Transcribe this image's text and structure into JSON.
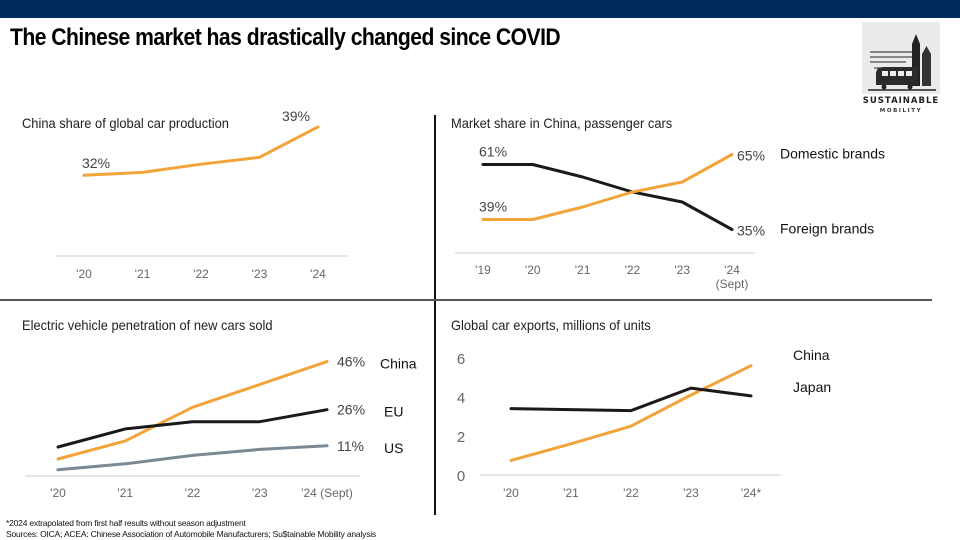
{
  "header": {
    "title": "The Chinese market has drastically changed since COVID",
    "bar_color": "#002a5c"
  },
  "logo": {
    "icon": "tram-and-towers-icon",
    "line1": "SUSTAINABLE",
    "line2": "MOBILITY"
  },
  "colors": {
    "china": "#f2a33a",
    "dark": "#1a1a1a",
    "us": "#7a8a94",
    "axis": "#cccccc"
  },
  "chart_data": [
    {
      "id": "production",
      "type": "line",
      "title": "China share of global car production",
      "categories": [
        "'20",
        "'21",
        "'22",
        "'23",
        "'24"
      ],
      "series": [
        {
          "name": "China",
          "color": "#f2a33a",
          "values": [
            32,
            32.4,
            33.6,
            34.6,
            39
          ],
          "labels": [
            {
              "index": 0,
              "text": "32%"
            },
            {
              "index": 4,
              "text": "39%"
            }
          ]
        }
      ],
      "ylim": [
        20,
        40
      ],
      "grid": false,
      "legend": "none"
    },
    {
      "id": "market_share",
      "type": "line",
      "title": "Market share in China, passenger cars",
      "categories": [
        "'19",
        "'20",
        "'21",
        "'22",
        "'23",
        "'24"
      ],
      "category_sublabels": [
        "",
        "",
        "",
        "",
        "",
        "(Sept)"
      ],
      "series": [
        {
          "name": "Foreign brands",
          "color": "#1a1a1a",
          "values": [
            61,
            61,
            56,
            50,
            46,
            35
          ],
          "labels": [
            {
              "index": 0,
              "text": "61%"
            },
            {
              "index": 5,
              "text": "35%"
            }
          ]
        },
        {
          "name": "Domestic brands",
          "color": "#f2a33a",
          "values": [
            39,
            39,
            44,
            50,
            54,
            65
          ],
          "labels": [
            {
              "index": 0,
              "text": "39%"
            },
            {
              "index": 5,
              "text": "65%"
            }
          ]
        }
      ],
      "ylim": [
        22,
        72
      ],
      "grid": false,
      "legend": "right"
    },
    {
      "id": "ev_penetration",
      "type": "line",
      "title": "Electric vehicle penetration of new cars sold",
      "categories": [
        "'20",
        "'21",
        "'22",
        "'23",
        "'24 (Sept)"
      ],
      "series": [
        {
          "name": "China",
          "color": "#f2a33a",
          "values": [
            5.5,
            13,
            27,
            36.5,
            46
          ],
          "labels": [
            {
              "index": 4,
              "text": "46%"
            }
          ]
        },
        {
          "name": "EU",
          "color": "#1a1a1a",
          "values": [
            10.5,
            18,
            21,
            21,
            26
          ],
          "labels": [
            {
              "index": 4,
              "text": "26%"
            }
          ]
        },
        {
          "name": "US",
          "color": "#7a8a94",
          "values": [
            1,
            3.5,
            7,
            9.5,
            11
          ],
          "labels": [
            {
              "index": 4,
              "text": "11%"
            }
          ]
        }
      ],
      "ylim": [
        -2,
        50
      ],
      "grid": false,
      "legend": "right"
    },
    {
      "id": "exports",
      "type": "line",
      "title": "Global car exports, millions of units",
      "categories": [
        "'20",
        "'21",
        "'22",
        "'23",
        "'24*"
      ],
      "yticks": [
        0,
        2,
        4,
        6
      ],
      "series": [
        {
          "name": "China",
          "color": "#f2a33a",
          "values": [
            0.75,
            1.6,
            2.5,
            4.1,
            5.6
          ]
        },
        {
          "name": "Japan",
          "color": "#1a1a1a",
          "values": [
            3.4,
            3.35,
            3.3,
            4.45,
            4.05
          ]
        }
      ],
      "ylim": [
        0,
        6.3
      ],
      "grid": false,
      "legend": "right"
    }
  ],
  "footnotes": {
    "note": "*2024 extrapolated from first half results without season adjustment",
    "sources": "Sources: OICA; ACEA: Chinese Association of Automobile Manufacturers; Su$tainable Mobility analysis"
  }
}
